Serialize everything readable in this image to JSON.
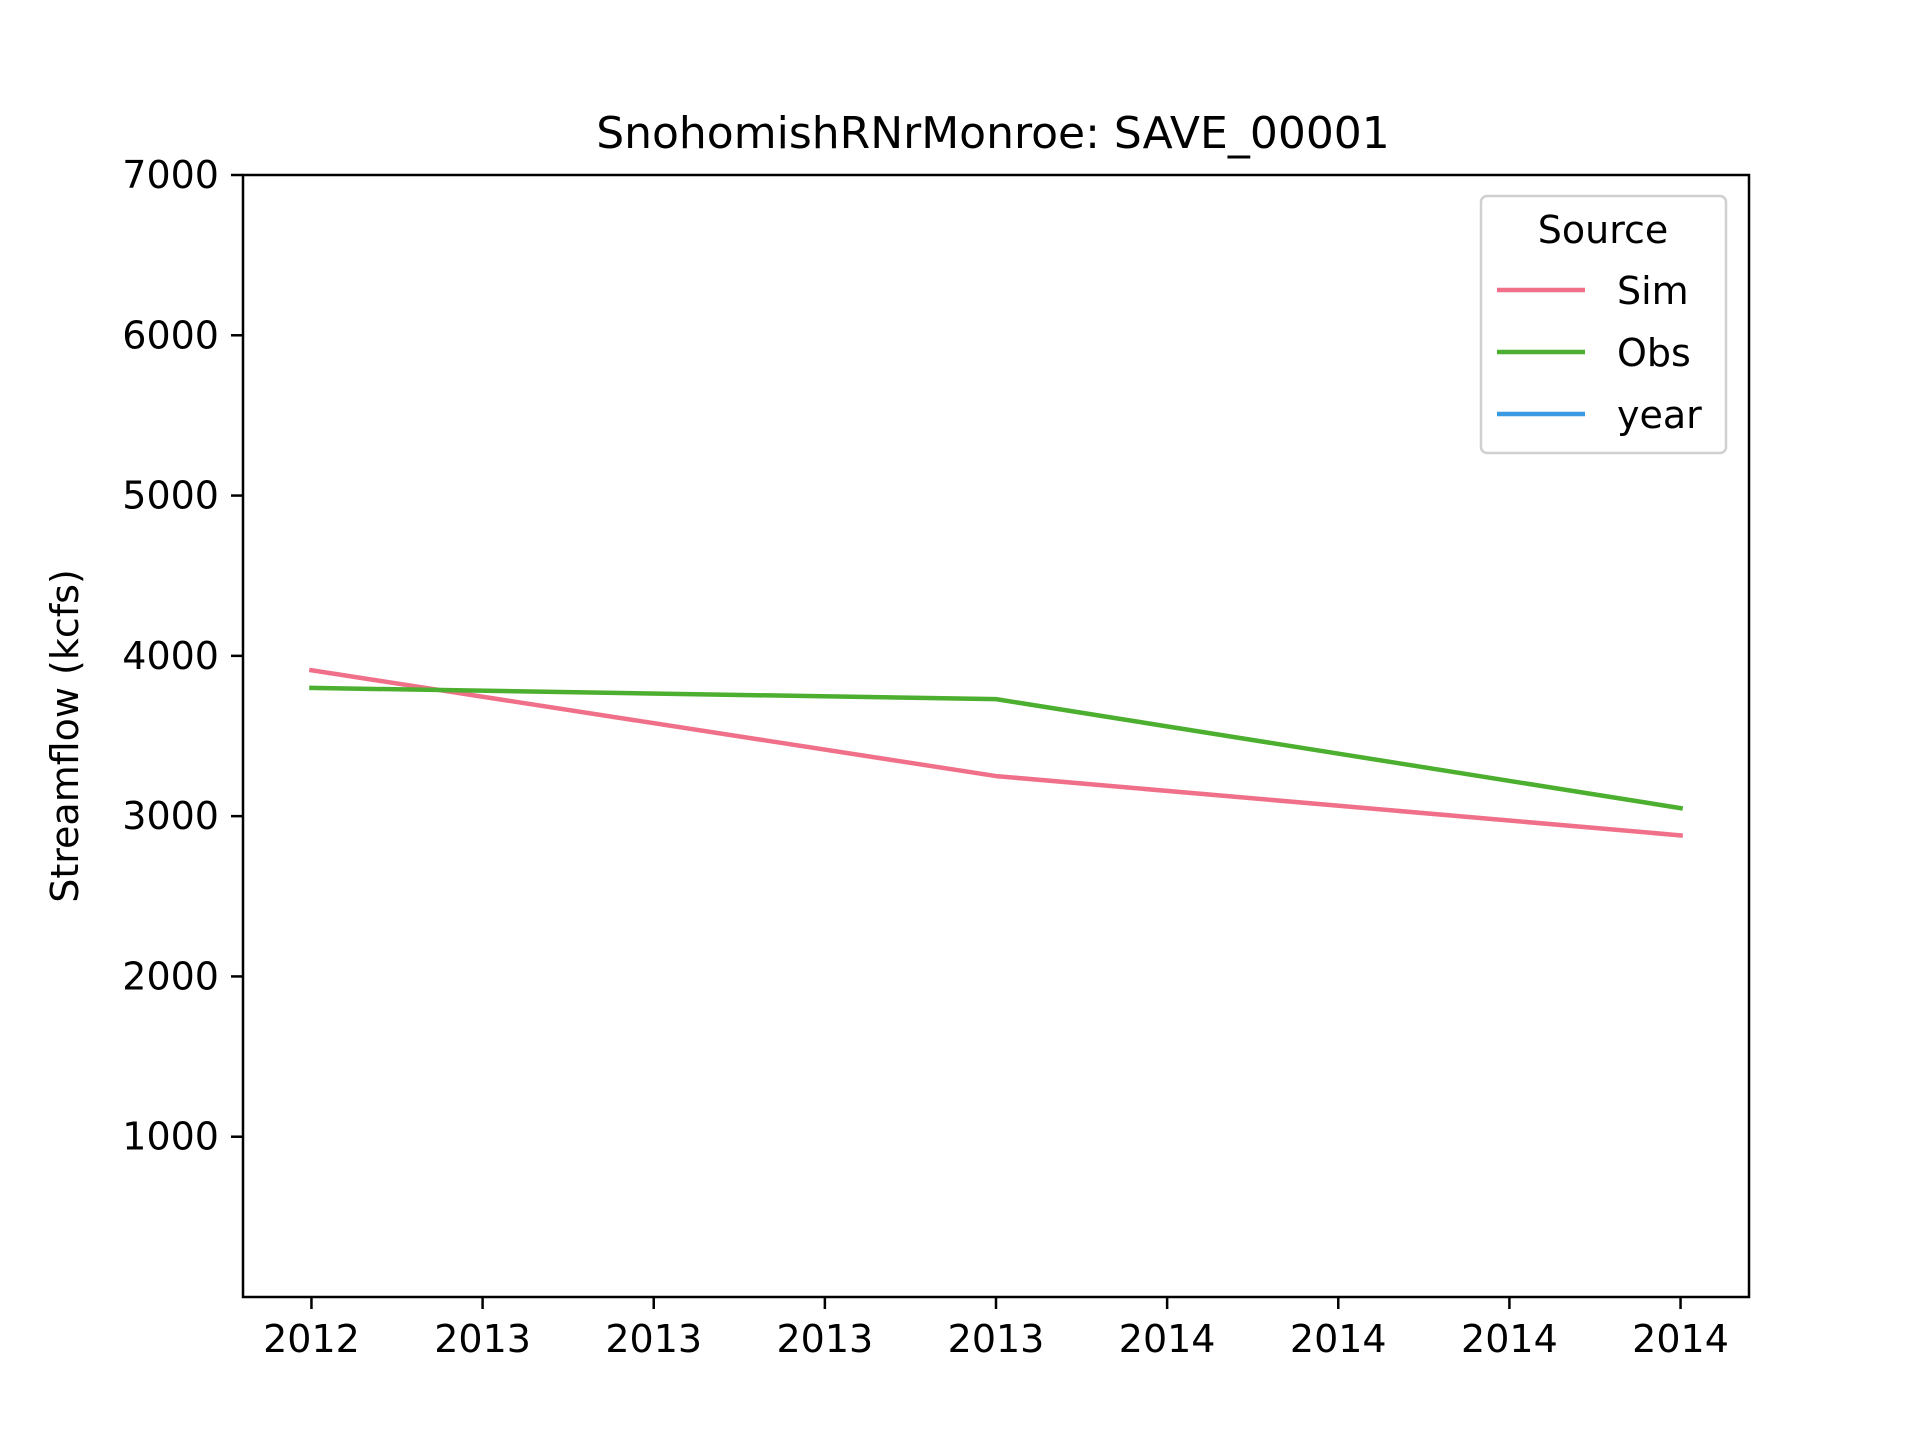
{
  "chart_data": {
    "type": "line",
    "title": "SnohomishRNrMonroe: SAVE_00001",
    "xlabel": "",
    "ylabel": "Streamflow (kcfs)",
    "x": [
      0,
      1,
      2,
      3,
      4,
      5,
      6,
      7,
      8
    ],
    "xticks": [
      0,
      1,
      2,
      3,
      4,
      5,
      6,
      7,
      8
    ],
    "xtick_labels": [
      "2012",
      "2013",
      "2013",
      "2013",
      "2013",
      "2014",
      "2014",
      "2014",
      "2014"
    ],
    "xlim": [
      -0.4,
      8.4
    ],
    "yticks": [
      1000,
      2000,
      3000,
      4000,
      5000,
      6000,
      7000
    ],
    "ylim": [
      0,
      7000
    ],
    "grid": false,
    "legend": {
      "title": "Source",
      "placement": "top-right"
    },
    "series": [
      {
        "name": "Sim",
        "color": "#f0708a",
        "x": [
          0,
          4,
          8
        ],
        "values": [
          3910,
          3250,
          2880
        ]
      },
      {
        "name": "Obs",
        "color": "#4caf2f",
        "x": [
          0,
          4,
          8
        ],
        "values": [
          3800,
          3730,
          3050
        ]
      },
      {
        "name": "year",
        "color": "#3b9ae1",
        "x": [],
        "values": []
      }
    ]
  }
}
